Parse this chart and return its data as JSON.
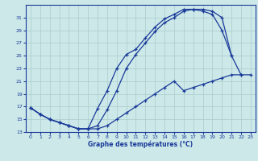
{
  "xlabel": "Graphe des températures (°C)",
  "bg_color": "#cce8e8",
  "grid_color": "#aacccc",
  "line_color": "#1a3a9a",
  "xmin": -0.5,
  "xmax": 23.5,
  "ymin": 13,
  "ymax": 33,
  "yticks": [
    13,
    15,
    17,
    19,
    21,
    23,
    25,
    27,
    29,
    31
  ],
  "xticks": [
    0,
    1,
    2,
    3,
    4,
    5,
    6,
    7,
    8,
    9,
    10,
    11,
    12,
    13,
    14,
    15,
    16,
    17,
    18,
    19,
    20,
    21,
    22,
    23
  ],
  "line1_x": [
    0,
    1,
    2,
    3,
    4,
    5,
    6,
    7,
    8,
    9,
    10,
    11,
    12,
    13,
    14,
    15,
    16,
    17,
    18,
    19,
    20,
    21
  ],
  "line1_y": [
    16.8,
    15.8,
    15.0,
    14.5,
    14.0,
    13.5,
    13.5,
    16.7,
    19.5,
    23.0,
    25.2,
    26.0,
    27.8,
    29.5,
    30.8,
    31.5,
    32.3,
    32.3,
    32.3,
    32.0,
    31.0,
    25.0
  ],
  "line2_x": [
    0,
    1,
    2,
    3,
    4,
    5,
    6,
    7,
    8,
    9,
    10,
    11,
    12,
    13,
    14,
    15,
    16,
    17,
    18,
    19,
    20,
    21,
    22,
    23
  ],
  "line2_y": [
    16.8,
    15.8,
    15.0,
    14.5,
    14.0,
    13.5,
    13.5,
    13.5,
    14.0,
    15.0,
    16.0,
    17.0,
    18.0,
    19.0,
    20.0,
    21.0,
    19.5,
    20.0,
    20.5,
    21.0,
    21.5,
    22.0,
    22.0,
    22.0
  ],
  "line3_x": [
    0,
    1,
    2,
    3,
    4,
    5,
    6,
    7,
    8,
    9,
    10,
    11,
    12,
    13,
    14,
    15,
    16,
    17,
    18,
    19,
    20,
    21,
    22,
    23
  ],
  "line3_y": [
    16.8,
    15.8,
    15.0,
    14.5,
    14.0,
    13.5,
    13.5,
    14.0,
    16.5,
    19.5,
    23.0,
    25.2,
    27.0,
    28.8,
    30.2,
    31.0,
    32.0,
    32.3,
    32.0,
    31.5,
    29.0,
    25.0,
    22.0,
    null
  ]
}
